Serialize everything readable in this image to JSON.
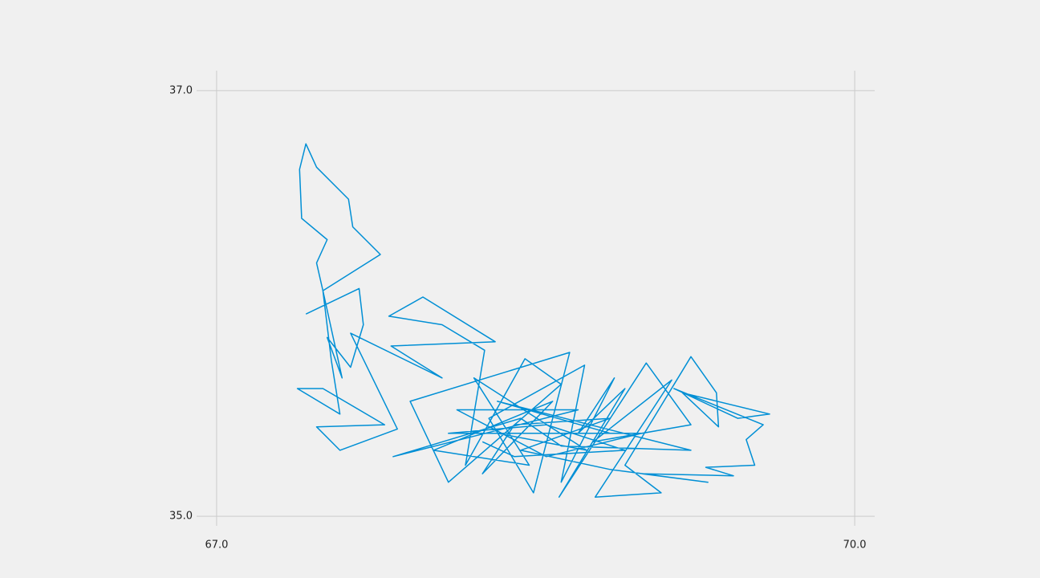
{
  "chart_data": {
    "type": "line",
    "x": [
      67.42,
      67.67,
      67.69,
      67.63,
      67.52,
      67.59,
      67.5,
      67.47,
      67.52,
      67.4,
      67.39,
      67.42,
      67.47,
      67.62,
      67.64,
      67.77,
      67.5,
      67.54,
      67.58,
      67.38,
      67.5,
      67.79,
      67.47,
      67.58,
      67.85,
      67.63,
      68.06,
      67.82,
      68.31,
      67.97,
      67.81,
      68.06,
      68.26,
      68.17,
      68.45,
      68.62,
      68.09,
      67.91,
      68.66,
      68.49,
      68.28,
      68.73,
      68.62,
      68.87,
      68.7,
      68.92,
      68.61,
      69.02,
      69.23,
      68.77,
      69.14,
      68.78,
      69.09,
      68.92,
      69.23,
      69.35,
      69.36,
      69.19,
      69.6,
      69.45,
      69.15,
      69.57,
      69.49,
      69.53,
      69.3,
      69.43,
      69.0,
      69.31,
      68.85,
      68.43,
      68.85,
      68.4,
      68.25,
      68.58,
      68.02,
      68.47,
      68.21,
      68.74,
      68.32,
      69.0,
      68.55,
      68.13,
      68.7,
      67.83,
      68.43,
      68.62,
      69.23,
      68.32,
      68.85,
      68.09,
      68.55,
      68.92,
      68.4,
      68.25
    ],
    "values": [
      35.95,
      36.07,
      35.9,
      35.7,
      35.84,
      35.65,
      36.06,
      36.19,
      36.3,
      36.4,
      36.63,
      36.75,
      36.64,
      36.49,
      36.36,
      36.23,
      36.06,
      35.73,
      35.48,
      35.6,
      35.6,
      35.43,
      35.42,
      35.31,
      35.41,
      35.86,
      35.65,
      35.8,
      35.82,
      36.03,
      35.94,
      35.9,
      35.78,
      35.24,
      35.74,
      35.62,
      35.16,
      35.54,
      35.77,
      35.11,
      35.46,
      35.71,
      35.16,
      35.65,
      35.39,
      35.6,
      35.09,
      35.72,
      35.43,
      35.35,
      35.64,
      35.09,
      35.11,
      35.24,
      35.75,
      35.58,
      35.42,
      35.58,
      35.48,
      35.46,
      35.6,
      35.43,
      35.36,
      35.24,
      35.23,
      35.19,
      35.2,
      35.16,
      35.22,
      35.31,
      35.46,
      35.43,
      35.2,
      35.54,
      35.31,
      35.24,
      35.65,
      35.31,
      35.39,
      35.39,
      35.28,
      35.5,
      35.5,
      35.28,
      35.46,
      35.33,
      35.31,
      35.54,
      35.39,
      35.39,
      35.43,
      35.31,
      35.28,
      35.35
    ],
    "color": "#008fd5",
    "xlim": [
      66.906,
      70.094
    ],
    "ylim": [
      34.955,
      37.094
    ],
    "xticks": [
      {
        "value": 67,
        "label": "67.0"
      },
      {
        "value": 70,
        "label": "70.0"
      }
    ],
    "yticks": [
      {
        "value": 35,
        "label": "35.0"
      },
      {
        "value": 37,
        "label": "37.0"
      }
    ],
    "grid": true
  }
}
